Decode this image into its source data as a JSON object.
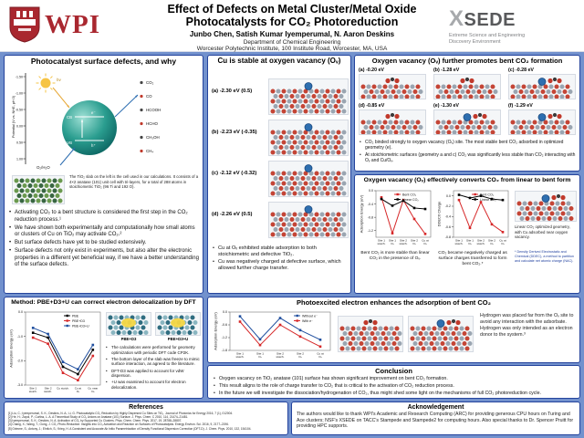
{
  "header": {
    "wpi_logo_text": "WPI",
    "title_line1": "Effect of Defects on Metal Cluster/Metal Oxide",
    "title_line2": "Photocatalysts for CO₂ Photoreduction",
    "authors": "Junbo Chen, Satish Kumar Iyemperumal, N. Aaron Deskins",
    "department": "Department of Chemical Engineering",
    "institution": "Worcester Polytechnic Institute, 100 Institute Road, Worcester, MA, USA",
    "xsede_x": "X",
    "xsede_rest": "SEDE",
    "xsede_tagline_line1": "Extreme Science and Engineering",
    "xsede_tagline_line2": "Discovery Environment"
  },
  "colors": {
    "page_background": "#7291cd",
    "box_border": "#24439c",
    "wpi_crimson": "#a9272f",
    "bent_co2_red": "#d62728",
    "linear_co2_black": "#000000",
    "pbe_d3_u_blue": "#1f4e9e"
  },
  "intro_box": {
    "title": "Photocatalyst surface defects, and why",
    "figure": {
      "y_axis_label": "Potential (V vs. NHE, pH 0)",
      "y_ticks": [
        "-1.50",
        "-1.00",
        "-0.50",
        "0.00",
        "0.50",
        "1.00"
      ],
      "band_labels": {
        "light": "hν",
        "cb": "CB",
        "vb": "VB",
        "electron": "e⁻",
        "hole": "h⁺"
      },
      "product_labels": [
        "CO₂",
        "CO",
        "HCOOH",
        "HCHO",
        "CH₃OH",
        "CH₄"
      ],
      "water_label": "O₂/H₂O"
    },
    "slab_caption": "The TiO₂ slab on the left is the cell used in our calculations. It consists of a 4×2 anatase (101) unit cell with tri-layers, for a total of 288 atoms in stoichiometric TiO₂ (96 Ti and 192 O).",
    "bullets": [
      "Activating CO₂ to a bent structure is considered the first step in the CO₂ reduction process.¹",
      "We have shown both experimentally and computationally how small atoms or clusters of Cu on TiO₂ may activate CO₂.²",
      "But surface defects have yet to be studied extensively.",
      "Surface defects not only exist in experiments, but also alter the electronic properties in a different yet beneficial way, if we have a better understanding of the surface defects."
    ]
  },
  "cu_box": {
    "title": "Cu is stable at oxygen vacancy (Oᵥ)",
    "items": [
      {
        "label": "(a) -2.30 eV (0.5)",
        "structure": "cu"
      },
      {
        "label": "(b) -2.23 eV (-0.35)",
        "structure": "cu"
      },
      {
        "label": "(c) -2.12 eV (-0.32)",
        "structure": "cu"
      },
      {
        "label": "(d) -2.26 eV (0.5)",
        "structure": "cu"
      }
    ],
    "bullets": [
      "Cu at Oᵥ exhibited stable adsorption to both stoichiometric and defective TiO₂.",
      "Cu was negatively charged at defective surface, which allowed further charge transfer."
    ]
  },
  "ov_box": {
    "title": "Oxygen vacancy (Oᵥ) further promotes bent CO₂ formation",
    "items": [
      {
        "label": "(a) -0.20 eV",
        "structure": "co2"
      },
      {
        "label": "(b) -1.28 eV",
        "structure": "co2"
      },
      {
        "label": "(c) -0.28 eV",
        "structure": "cu-co2"
      },
      {
        "label": "(d) -0.85 eV",
        "structure": "co2"
      },
      {
        "label": "(e) -1.30 eV",
        "structure": "cu-co2"
      },
      {
        "label": "(f) -1.29 eV",
        "structure": "cu-co2"
      }
    ],
    "bullets": [
      "CO₂ binded strongly to oxygen vacancy (Oᵥ) site. The most stable bent CO₂ adsorbed in optimized geometry (e).",
      "At stoichiometric surfaces (geometry a and c) CO₂ was significantly less stable than CO₂ interacting with Oᵥ and Cu/Oᵥ."
    ]
  },
  "convert_box": {
    "title": "Oxygen vacancy (Oᵥ) effectively converts CO₂ from linear to bent form",
    "caption_left": "Bent CO₂ is more stable than linear CO₂ in the presence of Oᵥ.",
    "caption_right": "CO₂ became negatively charged as surface charges transferred to form bent CO₂.*",
    "image_caption": "Linear CO₂ optimized geometry, with Cu adsorbed near oxygen vacancy.",
    "footnote": "* Density Derived Electrostatic and Chemical (DDEC), a method to partition and calculate net atomic charge (NAC).",
    "structure": "cu-co2"
  },
  "method_box": {
    "title": "Method: PBE+D3+U can correct electron delocalization by DFT",
    "image_labels": [
      "PBE+D3",
      "PBE+D3+U"
    ],
    "bullets": [
      "The calculations were performed for geometry optimization with periodic DFT code CP2K.",
      "The bottom layer of the slab was freeze to mimic surface interaction, as agreed to the literature.",
      "DFT-D3 was applied to account for vdW dispersion.",
      "+U was examined to account for electron delocalization."
    ]
  },
  "photo_box": {
    "title": "Photoexcited electron enhances the adsorption of bent CO₂",
    "note": "Hydrogen was placed far from the Oᵥ site to avoid any interaction with the adsorbate. Hydrogen was only intended as an electron donor to the system.³",
    "structures": [
      "co2",
      "cu-co2"
    ]
  },
  "conclusion_box": {
    "title": "Conclusion",
    "bullets": [
      "Oxygen vacancy on TiO₂ anatase (101) surface has shown significant improvement on bent CO₂ formation.",
      "This result aligns to the role of charge transfer to CO₂ that is critical to the activation of CO₂ reduction process.",
      "In the future we will investigate the dissociation/hydrogenation of CO₂, thus might shed some light on the mechanisms of full CO₂ photoreduction cycle."
    ]
  },
  "references_box": {
    "title": "References",
    "items": [
      "[1] Liu, C.; Iyemperumal, S. K.; Deskins, N. A.; Li, G. Photocatalytic CO₂ Reduction by Highly Dispersed Cu Sites on TiO₂. Journal of Photonics for Energy 2016, 7 (1), 012004.",
      "[2] He, H.; Zapol, P.; Curtiss, L. A. A Theoretical Study of CO₂ Anions on Anatase (101) Surface. J. Phys. Chem. C 2010, 114, 21474–21481.",
      "[3] Iyemperumal, S. K.; Deskins, N. A. Activation of CO₂ by Supported Cu Clusters. Phys. Chem. Chem. Phys. 2017, 19, 28788–28807.",
      "[4] Chang, X.; Wang, T.; Gong, J. CO₂ Photo-Reduction: Insights into CO₂ Activation and Reaction on Surfaces of Photocatalysts. Energy Environ. Sci. 2016, 9, 2177–2196.",
      "[5] Grimme, S.; Antony, J.; Ehrlich, S.; Krieg, H. A Consistent and Accurate Ab Initio Parametrization of Density Functional Dispersion Correction (DFT-D). J. Chem. Phys. 2010, 132, 154104."
    ]
  },
  "ack_box": {
    "title": "Acknowledgement",
    "text": "The authors would like to thank WPI's Academic and Research Computing (ARC) for providing generous CPU hours on Turing and Ace clusters; NSF's XSEDE on TACC's Stampede and Stampede2 for computing hours. Also special thanks to Dr. Spencer Pruitt for providing HPC supports."
  },
  "chart_data": [
    {
      "id": "method",
      "type": "line",
      "title": "",
      "xlabel": "",
      "ylabel": "Adsorption Energy (eV)",
      "ylim": [
        -3.0,
        0.0
      ],
      "yticks": [
        0,
        -1,
        -2,
        -3
      ],
      "grid": false,
      "legend_position": "top-right",
      "categories": [
        "Site 1 stoich.",
        "Site 2 stoich.",
        "Cu stoich.",
        "Cu at Oᵥ",
        "Cu near Oᵥ"
      ],
      "series": [
        {
          "name": "PBE",
          "color": "#000000",
          "values": [
            -0.85,
            -1.05,
            -2.25,
            -2.55,
            -1.55
          ]
        },
        {
          "name": "PBE+D3",
          "color": "#d62728",
          "values": [
            -1.05,
            -1.3,
            -2.5,
            -2.8,
            -1.8
          ]
        },
        {
          "name": "PBE+D3+U",
          "color": "#1f4e9e",
          "values": [
            -0.65,
            -0.9,
            -2.05,
            -2.35,
            -1.35
          ]
        }
      ]
    },
    {
      "id": "adsorption-energy",
      "type": "line",
      "title": "",
      "xlabel": "",
      "ylabel": "Adsorption Energy (eV)",
      "ylim": [
        -1.4,
        0.0
      ],
      "yticks": [
        0,
        -0.4,
        -0.8,
        -1.2
      ],
      "grid": false,
      "legend_position": "top-right",
      "categories": [
        "Site 1 stoich.",
        "Site 1 Oᵥ",
        "Site 2 stoich.",
        "Site 2 Oᵥ",
        "Cu at Oᵥ"
      ],
      "series": [
        {
          "name": "Bent CO₂",
          "color": "#d62728",
          "values": [
            -0.2,
            -1.28,
            -0.28,
            -0.85,
            -1.3
          ]
        },
        {
          "name": "Linear CO₂",
          "color": "#000000",
          "values": [
            -0.25,
            -0.45,
            -0.3,
            -0.52,
            -0.55
          ]
        }
      ]
    },
    {
      "id": "ddec6-charge",
      "type": "line",
      "title": "",
      "xlabel": "",
      "ylabel": "DDEC6 Charge",
      "ylim": [
        -0.8,
        0.1
      ],
      "yticks": [
        0,
        -0.2,
        -0.4,
        -0.6,
        -0.8
      ],
      "grid": false,
      "legend_position": "top-right",
      "categories": [
        "Site 1 stoich.",
        "Site 1 Oᵥ",
        "Site 2 stoich.",
        "Site 2 Oᵥ",
        "Cu at Oᵥ"
      ],
      "series": [
        {
          "name": "Bent CO₂",
          "color": "#d62728",
          "values": [
            -0.08,
            -0.62,
            -0.12,
            -0.55,
            -0.7
          ]
        },
        {
          "name": "Linear CO₂",
          "color": "#000000",
          "values": [
            0.02,
            -0.04,
            0.0,
            -0.06,
            -0.08
          ]
        }
      ]
    },
    {
      "id": "photoexcited",
      "type": "line",
      "title": "",
      "xlabel": "",
      "ylabel": "Adsorption Energy (eV)",
      "ylim": [
        -1.8,
        0.0
      ],
      "yticks": [
        0,
        -0.6,
        -1.2,
        -1.8
      ],
      "grid": false,
      "legend_position": "top-right",
      "categories": [
        "Site 1 stoich.",
        "Site 1 Oᵥ",
        "Site 2 stoich.",
        "Site 2 Oᵥ",
        "Cu at Oᵥ"
      ],
      "series": [
        {
          "name": "Without e⁻",
          "color": "#1f4e9e",
          "values": [
            -0.2,
            -1.28,
            -0.28,
            -0.85,
            -1.3
          ]
        },
        {
          "name": "With e⁻",
          "color": "#d62728",
          "values": [
            -0.45,
            -1.55,
            -0.6,
            -1.15,
            -1.62
          ]
        }
      ]
    }
  ]
}
